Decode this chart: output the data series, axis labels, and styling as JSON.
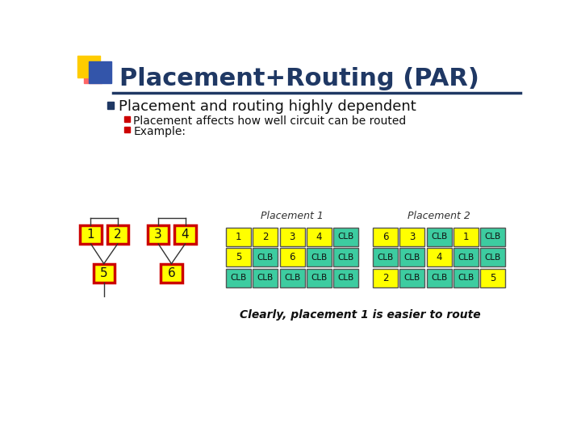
{
  "title": "Placement+Routing (PAR)",
  "bg_color": "#FFFFFF",
  "title_color": "#1F3864",
  "bullet1": "Placement and routing highly dependent",
  "sub_bullet1": "Placement affects how well circuit can be routed",
  "sub_bullet2": "Example:",
  "placement1_label": "Placement 1",
  "placement2_label": "Placement 2",
  "bottom_note": "Clearly, placement 1 is easier to route",
  "yellow": "#FFFF00",
  "teal": "#3DCCA0",
  "red_border": "#CC0000",
  "p1_grid": [
    [
      "1",
      "2",
      "3",
      "4",
      "CLB"
    ],
    [
      "5",
      "CLB",
      "6",
      "CLB",
      "CLB"
    ],
    [
      "CLB",
      "CLB",
      "CLB",
      "CLB",
      "CLB"
    ]
  ],
  "p2_grid": [
    [
      "6",
      "3",
      "CLB",
      "1",
      "CLB"
    ],
    [
      "CLB",
      "CLB",
      "4",
      "CLB",
      "CLB"
    ],
    [
      "2",
      "CLB",
      "CLB",
      "CLB",
      "5"
    ]
  ],
  "bullet_blue": "#1F3864",
  "bullet_red": "#CC0000",
  "deco_yellow": "#FFCC00",
  "deco_red": "#FF6666",
  "deco_blue": "#3355AA"
}
